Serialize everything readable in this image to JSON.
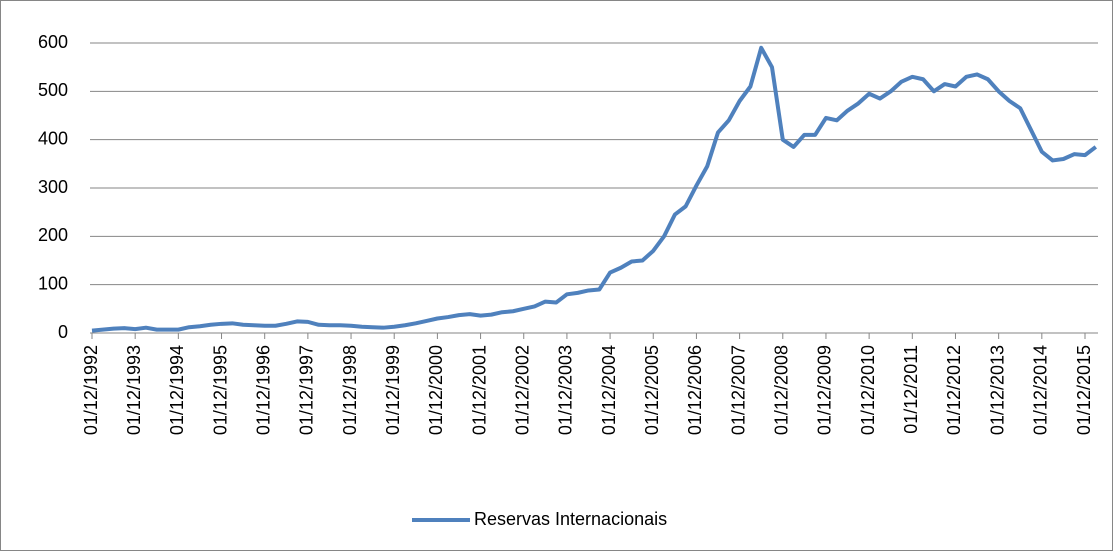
{
  "chart_data": {
    "type": "line",
    "categories": [
      "01/12/1992",
      null,
      null,
      null,
      "01/12/1993",
      null,
      null,
      null,
      "01/12/1994",
      null,
      null,
      null,
      "01/12/1995",
      null,
      null,
      null,
      "01/12/1996",
      null,
      null,
      null,
      "01/12/1997",
      null,
      null,
      null,
      "01/12/1998",
      null,
      null,
      null,
      "01/12/1999",
      null,
      null,
      null,
      "01/12/2000",
      null,
      null,
      null,
      "01/12/2001",
      null,
      null,
      null,
      "01/12/2002",
      null,
      null,
      null,
      "01/12/2003",
      null,
      null,
      null,
      "01/12/2004",
      null,
      null,
      null,
      "01/12/2005",
      null,
      null,
      null,
      "01/12/2006",
      null,
      null,
      null,
      "01/12/2007",
      null,
      null,
      null,
      "01/12/2008",
      null,
      null,
      null,
      "01/12/2009",
      null,
      null,
      null,
      "01/12/2010",
      null,
      null,
      null,
      "01/12/2011",
      null,
      null,
      null,
      "01/12/2012",
      null,
      null,
      null,
      "01/12/2013",
      null,
      null,
      null,
      "01/12/2014",
      null,
      null,
      null,
      "01/12/2015",
      null
    ],
    "series": [
      {
        "name": "Reservas Internacionais",
        "color": "#4f81bd",
        "values": [
          5,
          7,
          9,
          10,
          8,
          11,
          7,
          7,
          7,
          12,
          14,
          17,
          19,
          20,
          17,
          16,
          15,
          15,
          19,
          24,
          23,
          17,
          16,
          16,
          15,
          13,
          12,
          11,
          13,
          16,
          20,
          25,
          30,
          33,
          37,
          39,
          36,
          38,
          43,
          45,
          50,
          55,
          65,
          63,
          80,
          83,
          88,
          90,
          125,
          135,
          148,
          150,
          170,
          200,
          245,
          262,
          305,
          345,
          415,
          440,
          480,
          510,
          590,
          550,
          400,
          385,
          410,
          410,
          445,
          440,
          460,
          475,
          495,
          485,
          500,
          520,
          530,
          525,
          500,
          515,
          510,
          530,
          535,
          525,
          500,
          480,
          465,
          420,
          375,
          357,
          360,
          370,
          368,
          385
        ]
      }
    ],
    "ylim": [
      0,
      600
    ],
    "yticks": [
      0,
      100,
      200,
      300,
      400,
      500,
      600
    ],
    "grid": true,
    "legend": "bottom"
  }
}
